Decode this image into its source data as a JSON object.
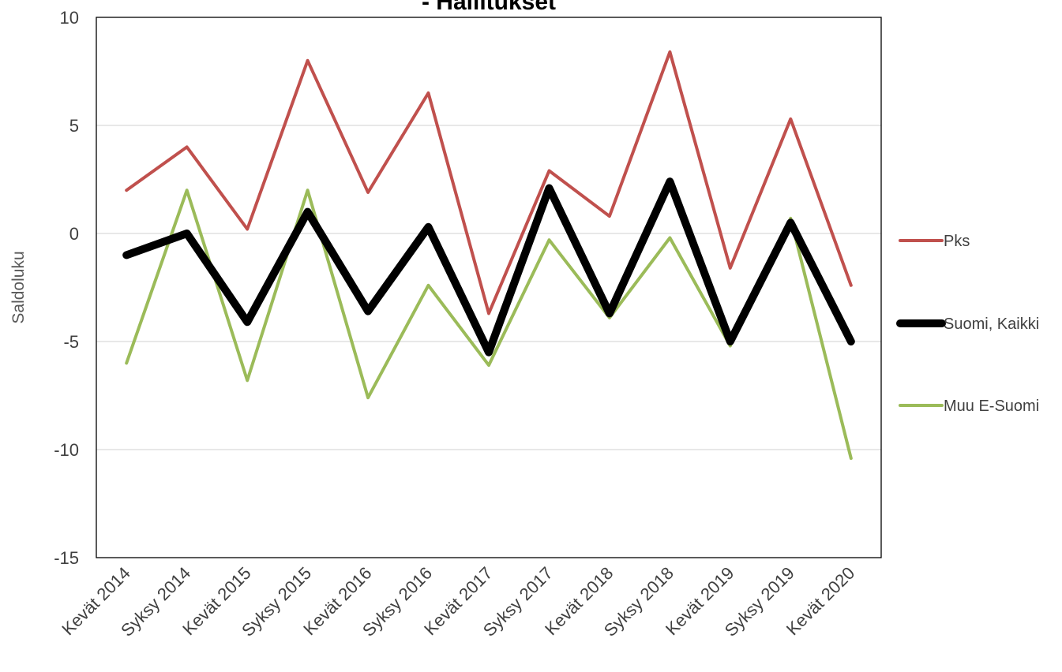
{
  "chart_data": {
    "type": "line",
    "title": "- Hallitukset",
    "xlabel": "",
    "ylabel": "Saldoluku",
    "ylim": [
      -15,
      10
    ],
    "yticks": [
      -15,
      -10,
      -5,
      0,
      5,
      10
    ],
    "ytick_labels": [
      "-15",
      "-10",
      "-5",
      "0",
      "5",
      "10"
    ],
    "grid": true,
    "legend_position": "right",
    "categories": [
      "Kevät 2014",
      "Syksy 2014",
      "Kevät 2015",
      "Syksy 2015",
      "Kevät 2016",
      "Syksy 2016",
      "Kevät 2017",
      "Syksy  2017",
      "Kevät 2018",
      "Syksy 2018",
      "Kevät 2019",
      "Syksy 2019",
      "Kevät 2020"
    ],
    "series": [
      {
        "name": "Pks",
        "color": "#C0504D",
        "values": [
          2.0,
          4.0,
          0.2,
          8.0,
          1.9,
          6.5,
          -3.7,
          2.9,
          0.8,
          8.4,
          -1.6,
          5.3,
          -2.4
        ]
      },
      {
        "name": "Suomi, Kaikki",
        "color": "#000000",
        "values": [
          -1.0,
          0.0,
          -4.1,
          1.0,
          -3.6,
          0.3,
          -5.5,
          2.1,
          -3.7,
          2.4,
          -5.0,
          0.5,
          -5.0
        ]
      },
      {
        "name": "Muu E-Suomi",
        "color": "#9BBB59",
        "values": [
          -6.0,
          2.0,
          -6.8,
          2.0,
          -7.6,
          -2.4,
          -6.1,
          -0.3,
          -3.9,
          -0.2,
          -5.2,
          0.7,
          -10.4
        ]
      }
    ]
  }
}
